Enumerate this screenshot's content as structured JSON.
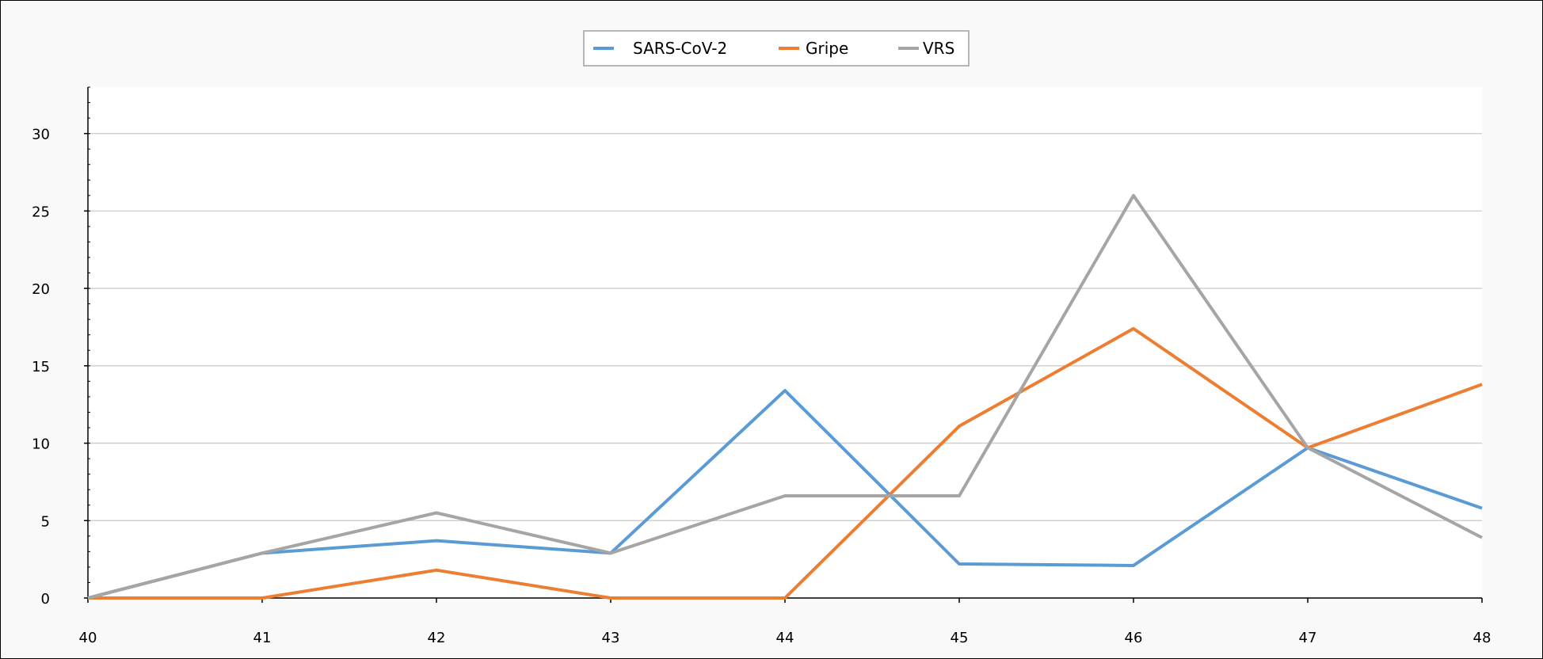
{
  "chart_data": {
    "type": "line",
    "title": "",
    "xlabel": "",
    "ylabel": "",
    "x": [
      40,
      41,
      42,
      43,
      44,
      45,
      46,
      47,
      48
    ],
    "xlim": [
      40,
      48
    ],
    "ylim": [
      0,
      33
    ],
    "y_ticks": [
      0,
      5,
      10,
      15,
      20,
      25,
      30
    ],
    "x_ticks": [
      40,
      41,
      42,
      43,
      44,
      45,
      46,
      47,
      48
    ],
    "grid": "horizontal",
    "legend": "top-center",
    "series": [
      {
        "name": "SARS-CoV-2",
        "color": "#5b9bd5",
        "values": [
          0,
          2.9,
          3.7,
          2.9,
          13.4,
          2.2,
          2.1,
          9.7,
          5.8
        ]
      },
      {
        "name": "Gripe",
        "color": "#ed7d31",
        "values": [
          0,
          0,
          1.8,
          0,
          0,
          11.1,
          17.4,
          9.7,
          13.8
        ]
      },
      {
        "name": "VRS",
        "color": "#a5a5a5",
        "values": [
          0,
          2.9,
          5.5,
          2.9,
          6.6,
          6.6,
          26.0,
          9.7,
          3.9
        ]
      }
    ]
  }
}
